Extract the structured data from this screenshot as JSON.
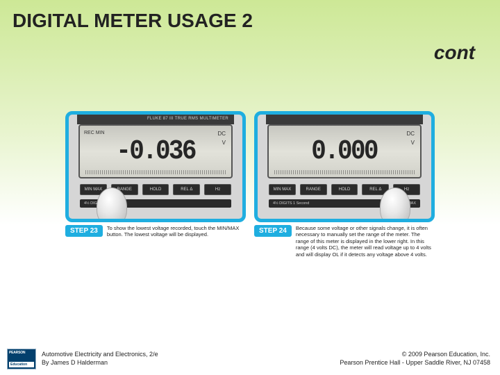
{
  "slide": {
    "title": "DIGITAL METER USAGE 2",
    "continuation": "cont"
  },
  "steps": [
    {
      "badge": "STEP 23",
      "caption": "To show the lowest voltage recorded, touch the MIN/MAX button. The lowest voltage will be displayed.",
      "meter": {
        "brand_line": "FLUKE 87 III TRUE RMS MULTIMETER",
        "reading": "-0.036",
        "indicators_left": "REC  MIN",
        "indicators_right_top": "DC",
        "indicators_right_bottom": "V",
        "buttons": [
          "MIN MAX",
          "RANGE",
          "HOLD",
          "REL Δ",
          "Hz"
        ],
        "sub_left": "4½ DIGITS",
        "sub_right": ""
      },
      "thumb_side": "left"
    },
    {
      "badge": "STEP 24",
      "caption": "Because some voltage or other signals change, it is often necessary to manually set the range of the meter. The range of this meter is displayed in the lower right. In this range (4 volts DC), the meter will read voltage up to 4 volts and will display OL if it detects any voltage above 4 volts.",
      "meter": {
        "brand_line": "",
        "reading": "0.000",
        "indicators_left": "",
        "indicators_right_top": "DC",
        "indicators_right_bottom": "V",
        "buttons": [
          "MIN MAX",
          "RANGE",
          "HOLD",
          "REL Δ",
          "Hz"
        ],
        "sub_left": "4½ DIGITS 1 Second",
        "sub_right": "PEAK MIN MAX"
      },
      "thumb_side": "right"
    }
  ],
  "footer": {
    "logo_top": "PEARSON",
    "logo_bottom": "Education",
    "book_title": "Automotive Electricity and Electronics, 2/e",
    "author": "By James D Halderman",
    "copyright_line1": "© 2009 Pearson Education, Inc.",
    "copyright_line2": "Pearson Prentice Hall - Upper Saddle River, NJ 07458"
  },
  "colors": {
    "accent": "#1faee0",
    "gradient_top": "#cde896",
    "logo_bg": "#03406d"
  }
}
